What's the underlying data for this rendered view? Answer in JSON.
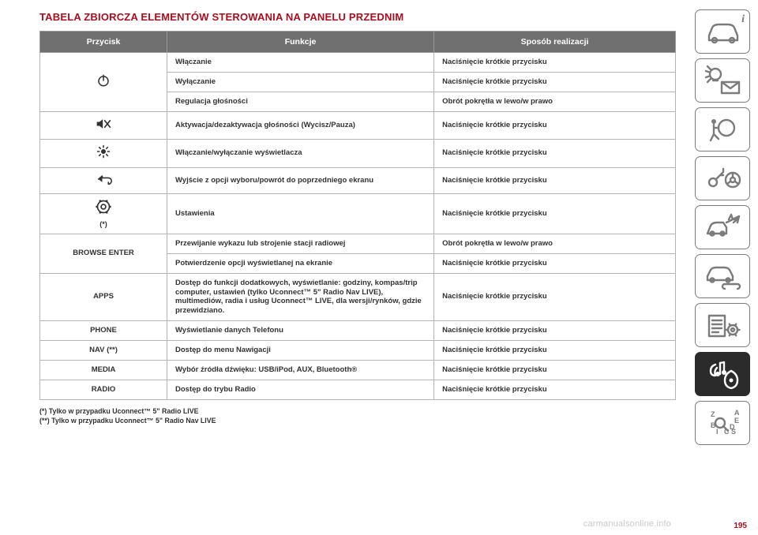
{
  "title": "TABELA ZBIORCZA ELEMENTÓW STEROWANIA NA PANELU PRZEDNIM",
  "headers": {
    "c1": "Przycisk",
    "c2": "Funkcje",
    "c3": "Sposób realizacji"
  },
  "rows": [
    {
      "btn_rowspan": 3,
      "btn_svg": "power",
      "fn": "Włączanie",
      "how": "Naciśnięcie krótkie przycisku"
    },
    {
      "fn": "Wyłączanie",
      "how": "Naciśnięcie krótkie przycisku"
    },
    {
      "fn": "Regulacja głośności",
      "how": "Obrót pokrętła w lewo/w prawo"
    },
    {
      "btn_svg": "mute",
      "fn": "Aktywacja/dezaktywacja głośności (Wycisz/Pauza)",
      "how": "Naciśnięcie krótkie przycisku"
    },
    {
      "btn_svg": "brightness",
      "fn": "Włączanie/wyłączanie wyświetlacza",
      "how": "Naciśnięcie krótkie przycisku"
    },
    {
      "btn_svg": "back",
      "fn": "Wyjście z opcji wyboru/powrót do poprzedniego ekranu",
      "how": "Naciśnięcie krótkie przycisku"
    },
    {
      "btn_svg": "settings",
      "btn_suffix": "(*)",
      "fn": "Ustawienia",
      "how": "Naciśnięcie krótkie przycisku"
    },
    {
      "btn_txt": "BROWSE ENTER",
      "btn_rowspan": 2,
      "fn": "Przewijanie wykazu lub strojenie stacji radiowej",
      "how": "Obrót pokrętła w lewo/w prawo"
    },
    {
      "fn": "Potwierdzenie opcji wyświetlanej na ekranie",
      "how": "Naciśnięcie krótkie przycisku"
    },
    {
      "btn_txt": "APPS",
      "fn": "Dostęp do funkcji dodatkowych, wyświetlanie: godziny, kompas/trip computer, ustawień (tylko Uconnect™ 5\" Radio Nav LIVE), multimediów, radia i usług Uconnect™ LIVE, dla wersji/rynków, gdzie przewidziano.",
      "how": "Naciśnięcie krótkie przycisku"
    },
    {
      "btn_txt": "PHONE",
      "fn": "Wyświetlanie danych Telefonu",
      "how": "Naciśnięcie krótkie przycisku"
    },
    {
      "btn_txt": "NAV (**)",
      "fn": "Dostęp do menu Nawigacji",
      "how": "Naciśnięcie krótkie przycisku"
    },
    {
      "btn_txt": "MEDIA",
      "fn": "Wybór źródła dźwięku: USB/iPod, AUX, Bluetooth®",
      "how": "Naciśnięcie krótkie przycisku"
    },
    {
      "btn_txt": "RADIO",
      "fn": "Dostęp do trybu Radio",
      "how": "Naciśnięcie krótkie przycisku"
    }
  ],
  "footnotes": [
    "(*) Tylko w przypadku Uconnect™ 5\" Radio LIVE",
    "(**) Tylko w przypadku Uconnect™ 5\" Radio Nav LIVE"
  ],
  "watermark": "carmanualsonline.info",
  "page_number": "195",
  "colors": {
    "accent": "#a80e1e",
    "header_bg": "#707070",
    "header_fg": "#ffffff",
    "border": "#b5b5b5",
    "text": "#323232",
    "nav_stroke": "#7b7b7b",
    "nav_active_bg": "#2b2b2b"
  },
  "sidenav": [
    {
      "name": "vehicle-info",
      "icon": "car",
      "corner_i": true
    },
    {
      "name": "lights-messages",
      "icon": "bulb-envelope"
    },
    {
      "name": "safety-airbag",
      "icon": "airbag"
    },
    {
      "name": "start-driving",
      "icon": "key-wheel"
    },
    {
      "name": "warning-collision",
      "icon": "collision"
    },
    {
      "name": "service",
      "icon": "car-wrench"
    },
    {
      "name": "specs",
      "icon": "spec-gear"
    },
    {
      "name": "multimedia",
      "icon": "music-nav",
      "active": true
    },
    {
      "name": "index",
      "icon": "index"
    }
  ]
}
